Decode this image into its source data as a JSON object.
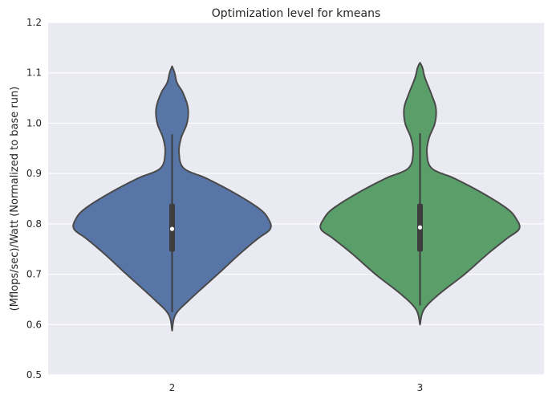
{
  "chart_data": {
    "type": "violin",
    "title": "Optimization level for kmeans",
    "xlabel": "",
    "ylabel": "(Mflops/sec)/Watt (Normalized to base run)",
    "ylim": [
      0.5,
      1.2
    ],
    "yticks": [
      "0.5",
      "0.6",
      "0.7",
      "0.8",
      "0.9",
      "1.0",
      "1.1",
      "1.2"
    ],
    "grid": true,
    "categories": [
      "2",
      "3"
    ],
    "series": [
      {
        "category": "2",
        "color": "#5875a8",
        "min": 0.625,
        "q1": 0.745,
        "median": 0.79,
        "q3": 0.84,
        "max": 0.978,
        "density_range": [
          0.588,
          1.113
        ],
        "density_profile": [
          [
            0.588,
            0.0
          ],
          [
            0.62,
            0.035
          ],
          [
            0.65,
            0.18
          ],
          [
            0.7,
            0.46
          ],
          [
            0.74,
            0.68
          ],
          [
            0.77,
            0.86
          ],
          [
            0.79,
            0.99
          ],
          [
            0.81,
            0.97
          ],
          [
            0.83,
            0.88
          ],
          [
            0.86,
            0.64
          ],
          [
            0.89,
            0.35
          ],
          [
            0.91,
            0.12
          ],
          [
            0.94,
            0.07
          ],
          [
            0.97,
            0.09
          ],
          [
            1.0,
            0.15
          ],
          [
            1.03,
            0.16
          ],
          [
            1.06,
            0.11
          ],
          [
            1.08,
            0.05
          ],
          [
            1.1,
            0.025
          ],
          [
            1.113,
            0.0
          ]
        ]
      },
      {
        "category": "3",
        "color": "#5a9e6a",
        "min": 0.638,
        "q1": 0.745,
        "median": 0.793,
        "q3": 0.84,
        "max": 0.98,
        "density_range": [
          0.6,
          1.12
        ],
        "density_profile": [
          [
            0.6,
            0.0
          ],
          [
            0.63,
            0.04
          ],
          [
            0.66,
            0.19
          ],
          [
            0.7,
            0.45
          ],
          [
            0.74,
            0.68
          ],
          [
            0.77,
            0.87
          ],
          [
            0.79,
            1.0
          ],
          [
            0.81,
            0.97
          ],
          [
            0.83,
            0.88
          ],
          [
            0.86,
            0.64
          ],
          [
            0.89,
            0.35
          ],
          [
            0.91,
            0.12
          ],
          [
            0.94,
            0.07
          ],
          [
            0.97,
            0.09
          ],
          [
            1.0,
            0.15
          ],
          [
            1.03,
            0.16
          ],
          [
            1.06,
            0.11
          ],
          [
            1.09,
            0.05
          ],
          [
            1.11,
            0.025
          ],
          [
            1.12,
            0.0
          ]
        ]
      }
    ]
  }
}
